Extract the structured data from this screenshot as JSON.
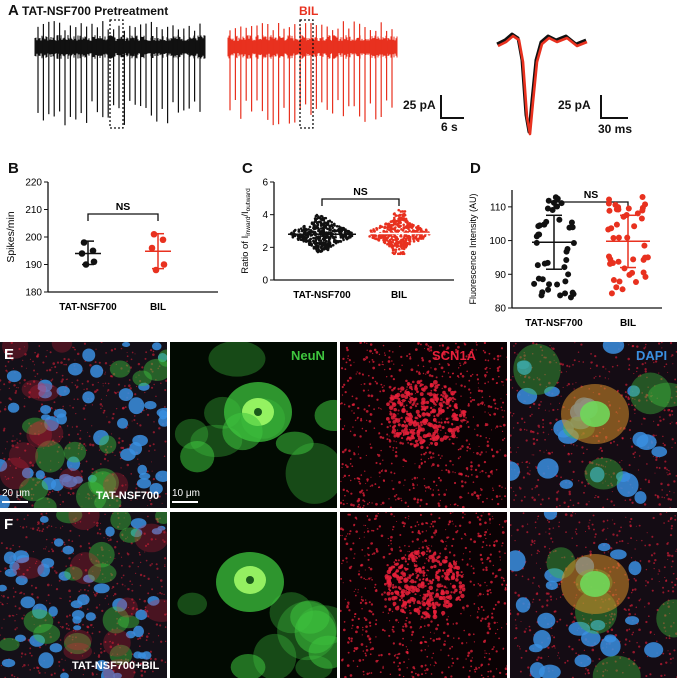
{
  "panels": {
    "A": "A",
    "B": "B",
    "C": "C",
    "D": "D",
    "E": "E",
    "F": "F"
  },
  "panelA": {
    "trace1_title": "TAT-NSF700 Pretreatment",
    "trace2_title": "BIL",
    "scale1_current": "25 pA",
    "scale1_time": "6 s",
    "scale2_current": "25 pA",
    "scale2_time": "30 ms",
    "colors": {
      "pretreatment": "#111111",
      "bil": "#e8311f"
    }
  },
  "chart_data": [
    {
      "type": "scatter",
      "panel": "B",
      "ylabel": "Spikes/min",
      "ylim": [
        180,
        220
      ],
      "yticks": [
        "180",
        "190",
        "200",
        "210",
        "220"
      ],
      "categories": [
        "TAT-NSF700",
        "BIL"
      ],
      "series": [
        {
          "values": [
            198,
            195,
            194,
            191,
            190
          ],
          "mean": 194,
          "sd_low": 190,
          "sd_high": 198.5,
          "color": "#111111"
        },
        {
          "values": [
            201,
            199,
            196,
            190,
            188
          ],
          "mean": 194.8,
          "sd_low": 188.5,
          "sd_high": 201.2,
          "color": "#e8311f"
        }
      ],
      "annotation": "NS"
    },
    {
      "type": "scatter",
      "panel": "C",
      "ylabel_main": "Ratio of I",
      "ylabel_sub1": "inward",
      "ylabel_mid": "/I",
      "ylabel_sub2": "outward",
      "ylim": [
        0,
        6
      ],
      "yticks": [
        "0",
        "2",
        "4",
        "6"
      ],
      "categories": [
        "TAT-NSF700",
        "BIL"
      ],
      "series": [
        {
          "mean": 2.8,
          "range": [
            1.6,
            4.6
          ],
          "color": "#111111"
        },
        {
          "mean": 2.85,
          "range": [
            1.6,
            5.1
          ],
          "color": "#e8311f"
        }
      ],
      "annotation": "NS"
    },
    {
      "type": "scatter",
      "panel": "D",
      "ylabel": "Fluorescence Intensity (AU)",
      "ylim": [
        80,
        115
      ],
      "yticks": [
        "80",
        "90",
        "100",
        "110"
      ],
      "categories": [
        "TAT-NSF700",
        "BIL"
      ],
      "series": [
        {
          "mean": 99.5,
          "sd_low": 91.5,
          "sd_high": 107.5,
          "range": [
            83,
            113
          ],
          "color": "#111111"
        },
        {
          "mean": 99.8,
          "sd_low": 92,
          "sd_high": 107.5,
          "range": [
            84,
            113
          ],
          "color": "#e8311f"
        }
      ],
      "annotation": "NS"
    }
  ],
  "micrographs": {
    "neun_label": "NeuN",
    "scn1a_label": "SCN1A",
    "dapi_label": "DAPI",
    "e_overview_label": "TAT-NSF700",
    "f_overview_label": "TAT-NSF700+BIL",
    "scale_20": "20 μm",
    "scale_10": "10 μm",
    "neun_color": "#3ec43e",
    "scn1a_color": "#e8203a",
    "dapi_color": "#3a8fe0"
  }
}
